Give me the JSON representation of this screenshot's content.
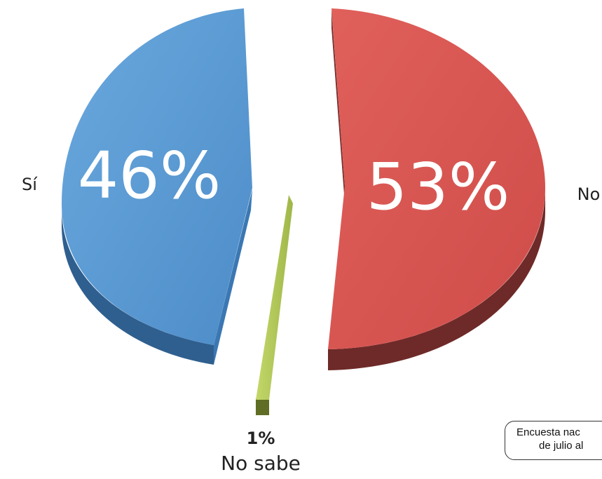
{
  "chart_data": {
    "type": "pie",
    "title": "",
    "slices": [
      {
        "name": "Sí",
        "value": 46,
        "label": "46%",
        "color": "#5b9bd5",
        "shade": "#2f5f8f"
      },
      {
        "name": "No",
        "value": 53,
        "label": "53%",
        "color": "#d9534f",
        "shade": "#6e2a28"
      },
      {
        "name": "No sabe",
        "value": 1,
        "label": "1%",
        "color": "#b5cc5a",
        "shade": "#5f6e24"
      }
    ],
    "legend": "none",
    "style": "3d-exploded"
  },
  "source_note": {
    "line1": "Encuesta nac",
    "line2": "de julio al"
  }
}
